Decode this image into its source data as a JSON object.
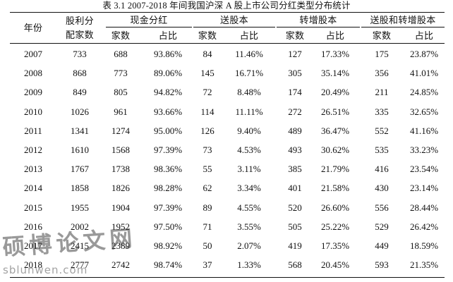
{
  "caption": "表 3.1    2007-2018 年间我国沪深 A 股上市公司分红类型分布统计",
  "headers": {
    "year": "年份",
    "dividend_line1": "股利分",
    "dividend_line2": "配家数",
    "groups": [
      "现金分红",
      "送股本",
      "转增股本",
      "送股和转增股本"
    ],
    "sub_count": "家数",
    "sub_ratio": "占比"
  },
  "rows": [
    [
      "2007",
      "733",
      "688",
      "93.86%",
      "84",
      "11.46%",
      "127",
      "17.33%",
      "175",
      "23.87%"
    ],
    [
      "2008",
      "868",
      "773",
      "89.06%",
      "145",
      "16.71%",
      "305",
      "35.14%",
      "356",
      "41.01%"
    ],
    [
      "2009",
      "849",
      "805",
      "94.82%",
      "72",
      "8.48%",
      "174",
      "20.49%",
      "211",
      "24.85%"
    ],
    [
      "2010",
      "1026",
      "961",
      "93.66%",
      "114",
      "11.11%",
      "272",
      "26.51%",
      "335",
      "32.65%"
    ],
    [
      "2011",
      "1341",
      "1274",
      "95.00%",
      "126",
      "9.40%",
      "489",
      "36.47%",
      "552",
      "41.16%"
    ],
    [
      "2012",
      "1610",
      "1568",
      "97.39%",
      "73",
      "4.53%",
      "493",
      "30.62%",
      "535",
      "33.23%"
    ],
    [
      "2013",
      "1767",
      "1738",
      "98.36%",
      "55",
      "3.11%",
      "385",
      "21.79%",
      "416",
      "23.54%"
    ],
    [
      "2014",
      "1858",
      "1826",
      "98.28%",
      "62",
      "3.34%",
      "401",
      "21.58%",
      "430",
      "23.14%"
    ],
    [
      "2015",
      "1955",
      "1904",
      "97.39%",
      "89",
      "4.55%",
      "520",
      "26.60%",
      "556",
      "28.44%"
    ],
    [
      "2016",
      "2002",
      "1952",
      "97.50%",
      "71",
      "3.55%",
      "505",
      "25.22%",
      "529",
      "26.42%"
    ],
    [
      "2017",
      "2415",
      "2389",
      "98.92%",
      "50",
      "2.07%",
      "419",
      "17.35%",
      "449",
      "18.59%"
    ],
    [
      "2018",
      "2777",
      "2742",
      "98.74%",
      "37",
      "1.33%",
      "568",
      "20.45%",
      "593",
      "21.35%"
    ]
  ],
  "watermark": {
    "main": "硕博论文网",
    "url": "sblunwen.com"
  }
}
